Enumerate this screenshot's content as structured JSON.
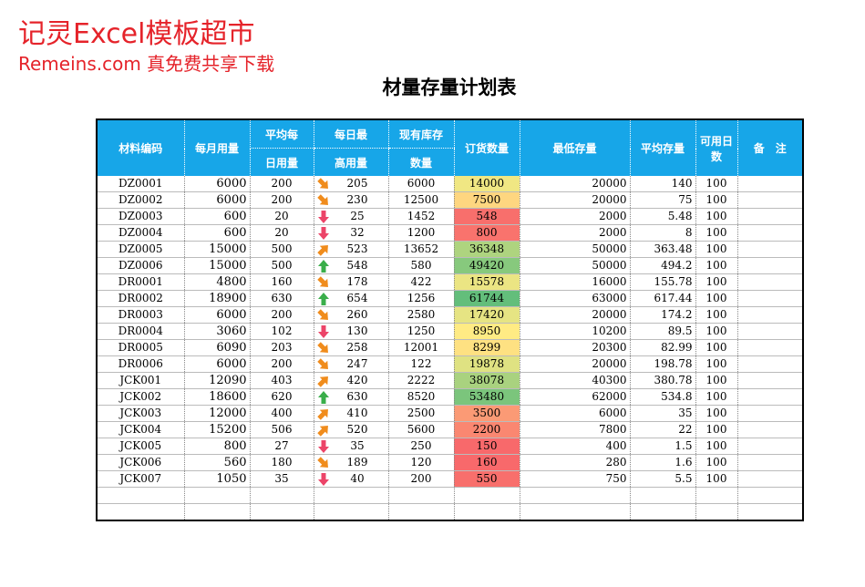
{
  "watermark": {
    "line1": "记灵Excel模板超市",
    "line2": "Remeins.com 真免费共享下载"
  },
  "title": "材量存量计划表",
  "table": {
    "columns": [
      {
        "label": "材料编码"
      },
      {
        "label": "每月用量"
      },
      {
        "label": [
          "平均每",
          "日用量"
        ]
      },
      {
        "label": [
          "每日最",
          "高用量"
        ]
      },
      {
        "label": [
          "现有库存",
          "数量"
        ]
      },
      {
        "label": "订货数量"
      },
      {
        "label": "最低存量"
      },
      {
        "label": "平均存量"
      },
      {
        "label": "可用日数"
      },
      {
        "label": "备　注"
      }
    ],
    "rows": [
      [
        "DZ0001",
        6000,
        200,
        205,
        6000,
        14000,
        20000,
        140,
        100
      ],
      [
        "DZ0002",
        6000,
        200,
        230,
        12500,
        7500,
        20000,
        75,
        100
      ],
      [
        "DZ0003",
        600,
        20,
        25,
        1452,
        548,
        2000,
        5.48,
        100
      ],
      [
        "DZ0004",
        600,
        20,
        32,
        1200,
        800,
        2000,
        8,
        100
      ],
      [
        "DZ0005",
        15000,
        500,
        523,
        13652,
        36348,
        50000,
        363.48,
        100
      ],
      [
        "DZ0006",
        15000,
        500,
        548,
        580,
        49420,
        50000,
        494.2,
        100
      ],
      [
        "DR0001",
        4800,
        160,
        178,
        422,
        15578,
        16000,
        155.78,
        100
      ],
      [
        "DR0002",
        18900,
        630,
        654,
        1256,
        61744,
        63000,
        617.44,
        100
      ],
      [
        "DR0003",
        6000,
        200,
        260,
        2580,
        17420,
        20000,
        174.2,
        100
      ],
      [
        "DR0004",
        3060,
        102,
        130,
        1250,
        8950,
        10200,
        89.5,
        100
      ],
      [
        "DR0005",
        6090,
        203,
        258,
        12001,
        8299,
        20300,
        82.99,
        100
      ],
      [
        "DR0006",
        6000,
        200,
        247,
        122,
        19878,
        20000,
        198.78,
        100
      ],
      [
        "JCK001",
        12090,
        403,
        420,
        2222,
        38078,
        40300,
        380.78,
        100
      ],
      [
        "JCK002",
        18600,
        620,
        630,
        8520,
        53480,
        62000,
        534.8,
        100
      ],
      [
        "JCK003",
        12000,
        400,
        410,
        2500,
        3500,
        6000,
        35,
        100
      ],
      [
        "JCK004",
        15200,
        506,
        520,
        5600,
        2200,
        7800,
        22,
        100
      ],
      [
        "JCK005",
        800,
        27,
        35,
        250,
        150,
        400,
        1.5,
        100
      ],
      [
        "JCK006",
        560,
        180,
        189,
        120,
        160,
        280,
        1.6,
        100
      ],
      [
        "JCK007",
        1050,
        35,
        40,
        200,
        550,
        750,
        5.5,
        100
      ]
    ]
  }
}
